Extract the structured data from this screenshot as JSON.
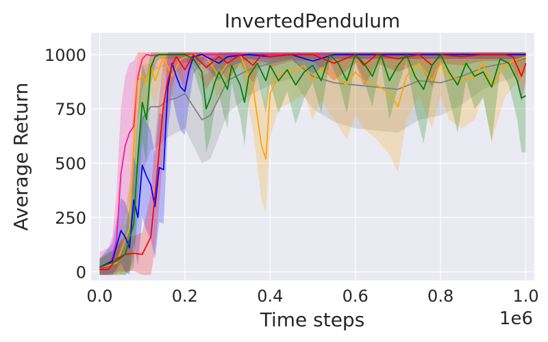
{
  "chart_data": {
    "type": "line",
    "title": "InvertedPendulum",
    "xlabel": "Time steps",
    "ylabel": "Average Return",
    "x_offset_label": "1e6",
    "xlim": [
      -0.02,
      1.02
    ],
    "ylim": [
      -40,
      1100
    ],
    "x_ticks": [
      0.0,
      0.2,
      0.4,
      0.6,
      0.8,
      1.0
    ],
    "x_tick_labels": [
      "0.0",
      "0.2",
      "0.4",
      "0.6",
      "0.8",
      "1.0"
    ],
    "y_ticks": [
      0,
      250,
      500,
      750,
      1000
    ],
    "y_tick_labels": [
      "0",
      "250",
      "500",
      "750",
      "1000"
    ],
    "grid": true,
    "background": "#eaeaf2",
    "series": [
      {
        "color": "#ff1493",
        "x": [
          0.0,
          0.02,
          0.03,
          0.04,
          0.05,
          0.06,
          0.07,
          0.08,
          0.09,
          0.1,
          0.11,
          0.12,
          0.14,
          0.16,
          0.18,
          0.2,
          0.22,
          0.25,
          0.3,
          0.4,
          0.5,
          0.6,
          0.7,
          0.8,
          0.9,
          1.0
        ],
        "y": [
          10,
          30,
          60,
          150,
          450,
          580,
          640,
          670,
          900,
          980,
          1000,
          995,
          1000,
          1000,
          1000,
          1000,
          1000,
          1000,
          1000,
          1000,
          1000,
          1000,
          1000,
          1000,
          1000,
          1000
        ],
        "band": [
          80,
          80,
          100,
          220,
          300,
          320,
          320,
          300,
          200,
          140,
          100,
          80,
          60,
          50,
          40,
          40,
          30,
          30,
          20,
          20,
          20,
          20,
          20,
          20,
          20,
          20
        ]
      },
      {
        "color": "#808080",
        "x": [
          0.0,
          0.03,
          0.06,
          0.08,
          0.1,
          0.12,
          0.14,
          0.16,
          0.18,
          0.2,
          0.22,
          0.24,
          0.26,
          0.28,
          0.3,
          0.35,
          0.4,
          0.45,
          0.5,
          0.55,
          0.6,
          0.65,
          0.7,
          0.75,
          0.8,
          0.85,
          0.9,
          0.95,
          1.0
        ],
        "y": [
          20,
          40,
          80,
          300,
          700,
          760,
          760,
          790,
          800,
          820,
          760,
          700,
          720,
          800,
          880,
          930,
          960,
          980,
          900,
          870,
          860,
          850,
          840,
          880,
          870,
          900,
          940,
          960,
          980
        ],
        "band": [
          40,
          60,
          150,
          250,
          250,
          200,
          180,
          170,
          160,
          160,
          180,
          200,
          200,
          180,
          150,
          120,
          100,
          90,
          150,
          180,
          200,
          200,
          200,
          180,
          150,
          130,
          100,
          80,
          60
        ]
      },
      {
        "color": "#ffa500",
        "x": [
          0.0,
          0.04,
          0.07,
          0.08,
          0.09,
          0.1,
          0.11,
          0.12,
          0.13,
          0.15,
          0.17,
          0.19,
          0.22,
          0.25,
          0.28,
          0.3,
          0.33,
          0.36,
          0.38,
          0.39,
          0.4,
          0.42,
          0.45,
          0.48,
          0.5,
          0.52,
          0.55,
          0.58,
          0.6,
          0.62,
          0.65,
          0.68,
          0.7,
          0.72,
          0.75,
          0.78,
          0.8,
          0.82,
          0.85,
          0.88,
          0.9,
          0.92,
          0.95,
          0.97,
          1.0
        ],
        "y": [
          20,
          40,
          200,
          580,
          880,
          900,
          870,
          950,
          880,
          990,
          900,
          980,
          1000,
          990,
          900,
          960,
          1000,
          850,
          580,
          520,
          820,
          900,
          920,
          950,
          880,
          940,
          900,
          860,
          920,
          880,
          860,
          820,
          760,
          900,
          960,
          880,
          960,
          900,
          880,
          900,
          960,
          850,
          950,
          970,
          990
        ],
        "band": [
          40,
          60,
          200,
          250,
          150,
          130,
          150,
          120,
          130,
          60,
          100,
          60,
          30,
          40,
          120,
          80,
          50,
          200,
          250,
          250,
          200,
          150,
          140,
          130,
          180,
          150,
          200,
          250,
          200,
          220,
          250,
          280,
          300,
          200,
          150,
          220,
          150,
          200,
          220,
          200,
          150,
          250,
          150,
          120,
          80
        ]
      },
      {
        "color": "#0000ff",
        "x": [
          0.0,
          0.03,
          0.05,
          0.06,
          0.07,
          0.08,
          0.09,
          0.1,
          0.11,
          0.12,
          0.13,
          0.14,
          0.15,
          0.16,
          0.17,
          0.18,
          0.19,
          0.2,
          0.21,
          0.22,
          0.24,
          0.26,
          0.28,
          0.3,
          0.35,
          0.4,
          0.45,
          0.5,
          0.55,
          0.6,
          0.65,
          0.7,
          0.75,
          0.8,
          0.85,
          0.9,
          0.95,
          1.0
        ],
        "y": [
          20,
          50,
          190,
          160,
          110,
          330,
          250,
          490,
          440,
          400,
          300,
          480,
          470,
          850,
          960,
          900,
          850,
          830,
          930,
          990,
          1000,
          980,
          960,
          990,
          1000,
          990,
          1000,
          970,
          1000,
          1000,
          1000,
          1000,
          1000,
          1000,
          1000,
          1000,
          1000,
          1000
        ],
        "band": [
          40,
          80,
          150,
          160,
          150,
          200,
          220,
          240,
          250,
          250,
          240,
          250,
          250,
          200,
          150,
          180,
          200,
          200,
          150,
          80,
          40,
          60,
          80,
          50,
          20,
          30,
          20,
          60,
          20,
          20,
          20,
          20,
          20,
          20,
          20,
          20,
          20,
          20
        ]
      },
      {
        "color": "#ff0000",
        "x": [
          0.0,
          0.02,
          0.04,
          0.06,
          0.08,
          0.1,
          0.12,
          0.13,
          0.14,
          0.15,
          0.16,
          0.17,
          0.18,
          0.2,
          0.22,
          0.25,
          0.28,
          0.3,
          0.33,
          0.36,
          0.38,
          0.4,
          0.45,
          0.5,
          0.55,
          0.6,
          0.62,
          0.65,
          0.7,
          0.75,
          0.78,
          0.8,
          0.85,
          0.9,
          0.95,
          0.97,
          0.99,
          1.0
        ],
        "y": [
          10,
          10,
          60,
          80,
          85,
          80,
          160,
          350,
          560,
          770,
          880,
          950,
          990,
          930,
          1000,
          940,
          990,
          960,
          1000,
          950,
          1000,
          990,
          1000,
          1000,
          960,
          1000,
          950,
          1000,
          980,
          1000,
          950,
          1000,
          990,
          1000,
          1000,
          990,
          900,
          960
        ],
        "band": [
          20,
          20,
          60,
          80,
          80,
          100,
          200,
          250,
          250,
          200,
          150,
          100,
          60,
          100,
          40,
          100,
          50,
          80,
          40,
          80,
          40,
          50,
          30,
          30,
          80,
          40,
          100,
          40,
          60,
          40,
          100,
          40,
          40,
          30,
          30,
          50,
          120,
          80
        ]
      },
      {
        "color": "#008000",
        "x": [
          0.0,
          0.04,
          0.06,
          0.08,
          0.09,
          0.1,
          0.11,
          0.12,
          0.13,
          0.14,
          0.16,
          0.18,
          0.2,
          0.22,
          0.24,
          0.25,
          0.26,
          0.27,
          0.28,
          0.29,
          0.3,
          0.31,
          0.32,
          0.33,
          0.34,
          0.35,
          0.37,
          0.39,
          0.4,
          0.42,
          0.44,
          0.46,
          0.48,
          0.5,
          0.52,
          0.54,
          0.56,
          0.58,
          0.6,
          0.62,
          0.64,
          0.66,
          0.68,
          0.7,
          0.72,
          0.74,
          0.76,
          0.78,
          0.8,
          0.82,
          0.84,
          0.86,
          0.88,
          0.9,
          0.92,
          0.94,
          0.96,
          0.98,
          0.99,
          1.0
        ],
        "y": [
          20,
          50,
          80,
          220,
          540,
          780,
          700,
          940,
          990,
          1000,
          1000,
          1000,
          1000,
          980,
          920,
          750,
          800,
          870,
          920,
          880,
          840,
          950,
          900,
          860,
          780,
          900,
          960,
          880,
          950,
          880,
          930,
          860,
          920,
          950,
          880,
          1000,
          960,
          880,
          1000,
          960,
          900,
          1000,
          880,
          950,
          1000,
          900,
          840,
          950,
          1000,
          920,
          860,
          960,
          900,
          920,
          850,
          980,
          960,
          880,
          800,
          810
        ],
        "band": [
          40,
          60,
          100,
          200,
          200,
          180,
          200,
          80,
          40,
          20,
          20,
          20,
          20,
          50,
          120,
          200,
          180,
          120,
          100,
          150,
          180,
          80,
          120,
          150,
          200,
          120,
          60,
          150,
          80,
          150,
          100,
          180,
          120,
          80,
          150,
          30,
          80,
          150,
          30,
          80,
          140,
          30,
          180,
          100,
          30,
          150,
          250,
          120,
          30,
          120,
          220,
          80,
          150,
          120,
          250,
          50,
          100,
          180,
          250,
          260
        ]
      }
    ]
  }
}
